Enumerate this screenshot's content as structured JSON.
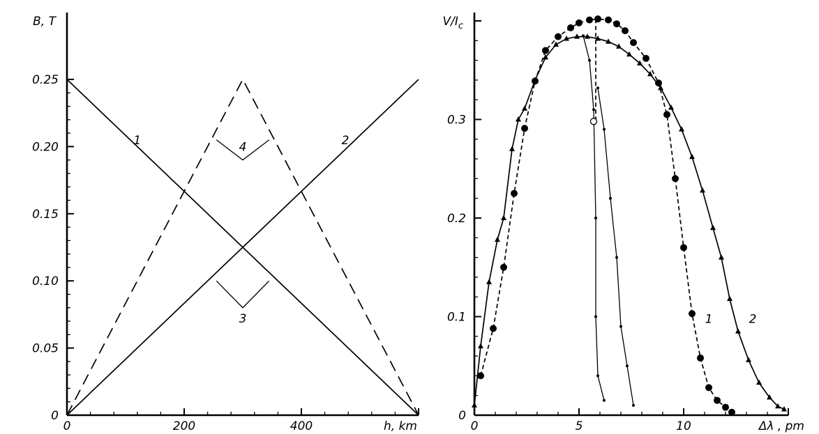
{
  "chart_data": [
    {
      "type": "line",
      "ylabel": "B, T",
      "xlabel": "h, km",
      "xlim": [
        0,
        600
      ],
      "ylim": [
        0,
        0.25
      ],
      "x_ticks": [
        "0",
        "200",
        "400"
      ],
      "x_tick_values": [
        0,
        200,
        400
      ],
      "y_ticks": [
        "0",
        "0.05",
        "0.10",
        "0.15",
        "0.20",
        "0.25"
      ],
      "y_tick_values": [
        0,
        0.05,
        0.1,
        0.15,
        0.2,
        0.25
      ],
      "series": [
        {
          "name": "1",
          "style": "solid",
          "x": [
            0,
            600
          ],
          "y": [
            0.25,
            0
          ]
        },
        {
          "name": "2",
          "style": "solid",
          "x": [
            0,
            600
          ],
          "y": [
            0,
            0.25
          ]
        },
        {
          "name": "4",
          "style": "dashed",
          "x": [
            0,
            300,
            600
          ],
          "y": [
            0,
            0.25,
            0
          ]
        }
      ],
      "annotations": [
        {
          "text": "1",
          "x": 120,
          "y": 0.205
        },
        {
          "text": "2",
          "x": 475,
          "y": 0.205
        },
        {
          "text": "3",
          "x": 300,
          "y": 0.072
        },
        {
          "text": "4",
          "x": 300,
          "y": 0.2
        }
      ],
      "brackets": [
        {
          "label": "3",
          "apex": [
            300,
            0.08
          ],
          "left": [
            255,
            0.1
          ],
          "right": [
            345,
            0.1
          ]
        },
        {
          "label": "4",
          "apex": [
            300,
            0.19
          ],
          "left": [
            255,
            0.205
          ],
          "right": [
            345,
            0.205
          ]
        }
      ]
    },
    {
      "type": "line",
      "ylabel": "V/I",
      "ylabel_sub": "c",
      "xlabel": "Δλ , pm",
      "xlim": [
        0,
        15
      ],
      "ylim": [
        0,
        0.4
      ],
      "x_ticks": [
        "0",
        "5",
        "10"
      ],
      "x_tick_values": [
        0,
        5,
        10
      ],
      "y_ticks": [
        "0",
        "0.1",
        "0.2",
        "0.3"
      ],
      "y_tick_values": [
        0,
        0.1,
        0.2,
        0.3
      ],
      "series": [
        {
          "name": "1",
          "style": "dashed",
          "marker": "circle",
          "x": [
            0.3,
            0.9,
            1.4,
            1.9,
            2.4,
            2.9,
            3.4,
            4.0,
            4.6,
            5.0,
            5.5,
            5.9,
            6.4,
            6.8,
            7.2,
            7.6,
            8.2,
            8.8,
            9.2,
            9.6,
            10.0,
            10.4,
            10.8,
            11.2,
            11.6,
            12.0,
            12.3
          ],
          "y": [
            0.04,
            0.088,
            0.15,
            0.225,
            0.291,
            0.339,
            0.37,
            0.384,
            0.393,
            0.398,
            0.401,
            0.402,
            0.401,
            0.397,
            0.39,
            0.378,
            0.362,
            0.337,
            0.305,
            0.24,
            0.17,
            0.103,
            0.058,
            0.028,
            0.015,
            0.008,
            0.003
          ]
        },
        {
          "name": "2",
          "style": "solid",
          "marker": "triangle",
          "x": [
            0.0,
            0.3,
            0.7,
            1.1,
            1.4,
            1.8,
            2.1,
            2.4,
            2.9,
            3.4,
            3.9,
            4.4,
            4.9,
            5.4,
            5.9,
            6.4,
            6.9,
            7.4,
            7.9,
            8.4,
            8.9,
            9.4,
            9.9,
            10.4,
            10.9,
            11.4,
            11.8,
            12.2,
            12.6,
            13.1,
            13.6,
            14.1,
            14.5,
            14.8
          ],
          "y": [
            0.01,
            0.07,
            0.135,
            0.178,
            0.2,
            0.27,
            0.3,
            0.311,
            0.34,
            0.363,
            0.376,
            0.382,
            0.384,
            0.384,
            0.382,
            0.379,
            0.374,
            0.366,
            0.357,
            0.346,
            0.332,
            0.312,
            0.29,
            0.262,
            0.228,
            0.19,
            0.16,
            0.118,
            0.085,
            0.056,
            0.033,
            0.018,
            0.009,
            0.006
          ]
        },
        {
          "name": "",
          "style": "solid",
          "marker": "small-dot",
          "x": [
            5.2,
            5.5,
            5.7,
            5.8,
            5.8,
            5.9,
            6.2
          ],
          "y": [
            0.385,
            0.36,
            0.31,
            0.2,
            0.1,
            0.04,
            0.015
          ]
        },
        {
          "name": "",
          "style": "solid",
          "marker": "small-dot",
          "x": [
            5.9,
            6.2,
            6.5,
            6.8,
            7.0,
            7.3,
            7.6
          ],
          "y": [
            0.332,
            0.29,
            0.22,
            0.16,
            0.09,
            0.05,
            0.01
          ]
        },
        {
          "name": "",
          "style": "dashed",
          "marker": "none",
          "x": [
            5.8,
            5.8
          ],
          "y": [
            0.402,
            0.3
          ]
        }
      ],
      "open_markers": [
        {
          "x": 5.7,
          "y": 0.298
        }
      ],
      "annotations": [
        {
          "text": "1",
          "x": 11.2,
          "y": 0.098
        },
        {
          "text": "2",
          "x": 13.3,
          "y": 0.098
        }
      ]
    }
  ]
}
